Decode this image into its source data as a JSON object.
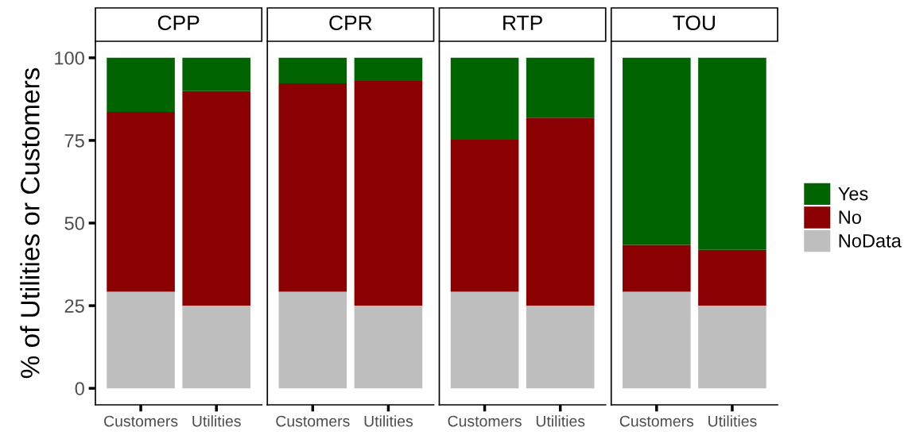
{
  "chart_data": [
    {
      "type": "bar",
      "title": "CPP",
      "ylabel": "% of Utilities or Customers",
      "stacked": true,
      "categories": [
        "Customers",
        "Utilities"
      ],
      "ylim": [
        -5,
        105
      ],
      "yticks": [
        0,
        25,
        50,
        75,
        100
      ],
      "grid": false,
      "legend": "right",
      "series": [
        {
          "name": "NoData",
          "color": "#bebebe",
          "values": [
            29.2,
            25
          ]
        },
        {
          "name": "No",
          "color": "#8b0000",
          "values": [
            54.4,
            64.9
          ]
        },
        {
          "name": "Yes",
          "color": "#006400",
          "values": [
            16.4,
            10.1
          ]
        }
      ]
    },
    {
      "type": "bar",
      "title": "CPR",
      "stacked": true,
      "categories": [
        "Customers",
        "Utilities"
      ],
      "ylim": [
        -5,
        105
      ],
      "yticks": [
        0,
        25,
        50,
        75,
        100
      ],
      "tick_labels": "x",
      "grid": false,
      "series": [
        {
          "color": "#bebebe",
          "values": [
            29.2,
            25
          ]
        },
        {
          "color": "#8b0000",
          "values": [
            63.1,
            68
          ]
        },
        {
          "color": "#006400",
          "values": [
            7.7,
            7
          ]
        }
      ]
    },
    {
      "type": "bar",
      "title": "RTP",
      "stacked": true,
      "categories": [
        "Customers",
        "Utilities"
      ],
      "ylim": [
        -5,
        105
      ],
      "yticks": [
        0,
        25,
        50,
        75,
        100
      ],
      "tick_labels": "x",
      "grid": false,
      "series": [
        {
          "color": "#bebebe",
          "values": [
            29.2,
            25
          ]
        },
        {
          "color": "#8b0000",
          "values": [
            46,
            56.9
          ]
        },
        {
          "color": "#006400",
          "values": [
            24.8,
            18.1
          ]
        }
      ]
    },
    {
      "type": "bar",
      "title": "TOU",
      "stacked": true,
      "categories": [
        "Customers",
        "Utilities"
      ],
      "ylim": [
        -5,
        105
      ],
      "yticks": [
        0,
        25,
        50,
        75,
        100
      ],
      "tick_labels": "x",
      "grid": false,
      "series": [
        {
          "color": "#bebebe",
          "values": [
            29.2,
            25
          ]
        },
        {
          "color": "#8b0000",
          "values": [
            14.2,
            16.9
          ]
        },
        {
          "color": "#006400",
          "values": [
            56.6,
            58.1
          ]
        }
      ]
    }
  ]
}
